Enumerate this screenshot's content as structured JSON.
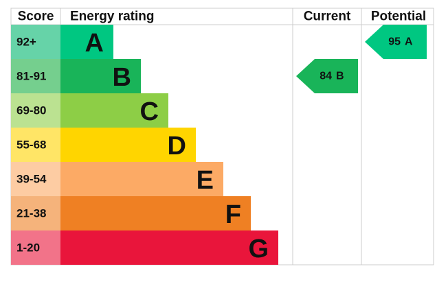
{
  "header": {
    "score": "Score",
    "rating": "Energy rating",
    "current": "Current",
    "potential": "Potential"
  },
  "bands": [
    {
      "score": "92+",
      "letter": "A",
      "color": "#00c781",
      "score_color": "#66d3a8"
    },
    {
      "score": "81-91",
      "letter": "B",
      "color": "#19b459",
      "score_color": "#75cf8e"
    },
    {
      "score": "69-80",
      "letter": "C",
      "color": "#8dce46",
      "score_color": "#bbe291"
    },
    {
      "score": "55-68",
      "letter": "D",
      "color": "#ffd500",
      "score_color": "#ffe566"
    },
    {
      "score": "39-54",
      "letter": "E",
      "color": "#fcaa65",
      "score_color": "#fdcca3"
    },
    {
      "score": "21-38",
      "letter": "F",
      "color": "#ef8023",
      "score_color": "#f5b37b"
    },
    {
      "score": "1-20",
      "letter": "G",
      "color": "#e9153b",
      "score_color": "#f27389"
    }
  ],
  "current": {
    "value": "84",
    "letter": "B"
  },
  "potential": {
    "value": "95",
    "letter": "A"
  }
}
